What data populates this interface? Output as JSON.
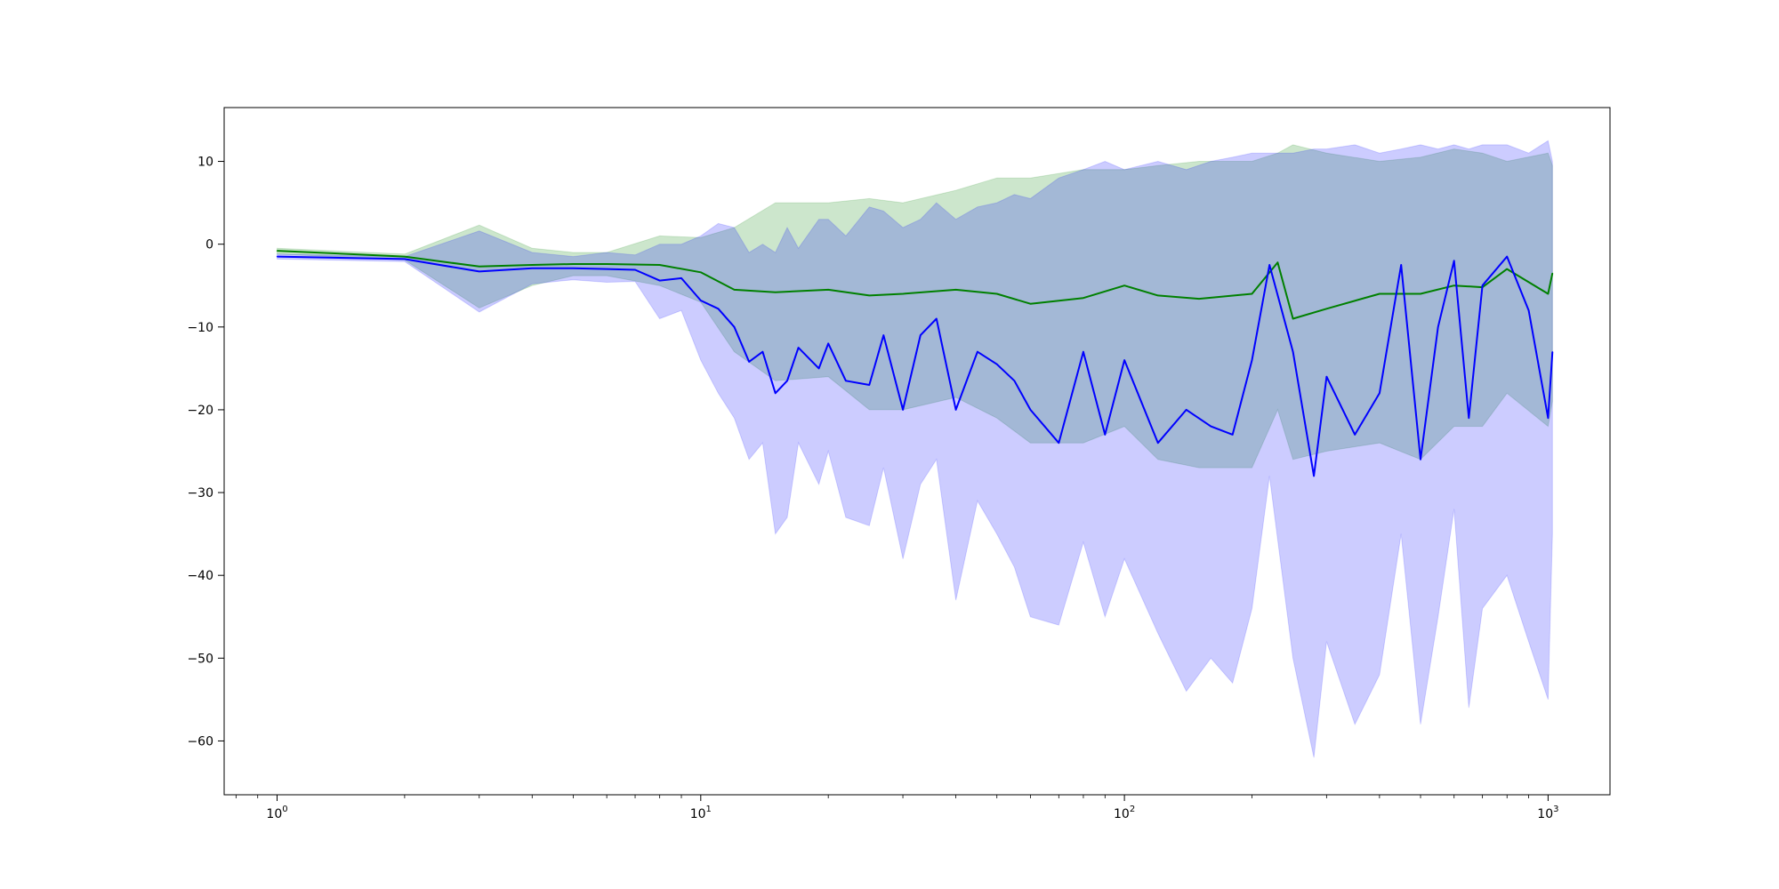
{
  "chart_data": {
    "type": "line",
    "title": "",
    "xlabel": "",
    "ylabel": "",
    "xscale": "log",
    "xlim": [
      0.75,
      1400
    ],
    "ylim": [
      -66.5,
      16.5
    ],
    "grid": false,
    "legend": "none",
    "x_ticks": [
      {
        "value": 1,
        "base": "10",
        "exp": "0"
      },
      {
        "value": 10,
        "base": "10",
        "exp": "1"
      },
      {
        "value": 100,
        "base": "10",
        "exp": "2"
      },
      {
        "value": 1000,
        "base": "10",
        "exp": "3"
      }
    ],
    "y_ticks": [
      {
        "value": 10,
        "label": "10"
      },
      {
        "value": 0,
        "label": "0"
      },
      {
        "value": -10,
        "label": "−10"
      },
      {
        "value": -20,
        "label": "−20"
      },
      {
        "value": -30,
        "label": "−30"
      },
      {
        "value": -40,
        "label": "−40"
      },
      {
        "value": -50,
        "label": "−50"
      },
      {
        "value": -60,
        "label": "−60"
      }
    ],
    "series": [
      {
        "color": "#008000",
        "band_color": "#008000",
        "band_opacity": 0.2,
        "x": [
          1,
          2,
          3,
          4,
          5,
          6,
          8,
          10,
          12,
          15,
          20,
          25,
          30,
          40,
          50,
          60,
          80,
          100,
          120,
          150,
          200,
          230,
          250,
          300,
          400,
          500,
          600,
          700,
          800,
          1000,
          1024
        ],
        "y": [
          -0.8,
          -1.5,
          -2.7,
          -2.5,
          -2.4,
          -2.4,
          -2.5,
          -3.4,
          -5.5,
          -5.8,
          -5.5,
          -6.2,
          -6.0,
          -5.5,
          -6.0,
          -7.2,
          -6.5,
          -5.0,
          -6.2,
          -6.6,
          -6.0,
          -2.2,
          -9.0,
          -7.8,
          -6.0,
          -6.0,
          -5.0,
          -5.2,
          -3.0,
          -6.0,
          -3.5
        ],
        "upper": [
          -0.5,
          -1.2,
          2.3,
          -0.5,
          -1.0,
          -1.0,
          1.0,
          0.8,
          2.0,
          5.0,
          5.0,
          5.5,
          5.0,
          6.5,
          8.0,
          8.0,
          9.0,
          9.0,
          9.5,
          10.0,
          10.0,
          11.0,
          12.0,
          11.0,
          10.0,
          10.5,
          11.5,
          11.0,
          10.0,
          11.0,
          9.5
        ],
        "lower": [
          -1.2,
          -1.9,
          -7.7,
          -5.0,
          -3.8,
          -3.8,
          -5.0,
          -7.0,
          -13.0,
          -16.5,
          -16.0,
          -20.0,
          -20.0,
          -18.5,
          -21.0,
          -24.0,
          -24.0,
          -22.0,
          -26.0,
          -27.0,
          -27.0,
          -20.0,
          -26.0,
          -25.0,
          -24.0,
          -26.0,
          -22.0,
          -22.0,
          -18.0,
          -22.0,
          -19.0
        ]
      },
      {
        "color": "#0000ff",
        "band_color": "#0000ff",
        "band_opacity": 0.2,
        "x": [
          1,
          2,
          3,
          4,
          5,
          6,
          7,
          8,
          9,
          10,
          11,
          12,
          13,
          14,
          15,
          16,
          17,
          19,
          20,
          22,
          25,
          27,
          30,
          33,
          36,
          40,
          45,
          50,
          55,
          60,
          70,
          80,
          90,
          100,
          120,
          140,
          160,
          180,
          200,
          220,
          250,
          280,
          300,
          350,
          400,
          450,
          500,
          550,
          600,
          650,
          700,
          800,
          900,
          1000,
          1024
        ],
        "y": [
          -1.5,
          -1.8,
          -3.3,
          -2.9,
          -2.9,
          -3.0,
          -3.1,
          -4.4,
          -4.1,
          -6.8,
          -7.8,
          -10.0,
          -14.2,
          -13.0,
          -18.0,
          -16.5,
          -12.5,
          -15.0,
          -12.0,
          -16.5,
          -17.0,
          -11.0,
          -20.0,
          -11.0,
          -9.0,
          -20.0,
          -13.0,
          -14.5,
          -16.5,
          -20.0,
          -24.0,
          -13.0,
          -23.0,
          -14.0,
          -24.0,
          -20.0,
          -22.0,
          -23.0,
          -14.0,
          -2.5,
          -13.0,
          -28.0,
          -16.0,
          -23.0,
          -18.0,
          -2.5,
          -26.0,
          -10.0,
          -2.0,
          -21.0,
          -5.0,
          -1.5,
          -8.0,
          -21.0,
          -13.0
        ],
        "upper": [
          -1.2,
          -1.5,
          1.6,
          -1.0,
          -1.5,
          -1.0,
          -1.3,
          0.0,
          0.0,
          1.0,
          2.5,
          2.0,
          -1.0,
          0.0,
          -1.0,
          2.0,
          -0.5,
          3.0,
          3.0,
          1.0,
          4.5,
          4.0,
          2.0,
          3.0,
          5.0,
          3.0,
          4.5,
          5.0,
          6.0,
          5.5,
          8.0,
          9.0,
          10.0,
          9.0,
          10.0,
          9.0,
          10.0,
          10.5,
          11.0,
          11.0,
          11.0,
          11.5,
          11.5,
          12.0,
          11.0,
          11.5,
          12.0,
          11.5,
          12.0,
          11.5,
          12.0,
          12.0,
          11.0,
          12.5,
          10.0
        ],
        "lower": [
          -1.8,
          -2.1,
          -8.2,
          -4.8,
          -4.3,
          -4.6,
          -4.5,
          -9.0,
          -8.0,
          -14.0,
          -18.0,
          -21.0,
          -26.0,
          -24.0,
          -35.0,
          -33.0,
          -24.0,
          -29.0,
          -25.0,
          -33.0,
          -34.0,
          -27.0,
          -38.0,
          -29.0,
          -26.0,
          -43.0,
          -31.0,
          -35.0,
          -39.0,
          -45.0,
          -46.0,
          -36.0,
          -45.0,
          -38.0,
          -47.0,
          -54.0,
          -50.0,
          -53.0,
          -44.0,
          -28.0,
          -50.0,
          -62.0,
          -48.0,
          -58.0,
          -52.0,
          -35.0,
          -58.0,
          -45.0,
          -32.0,
          -56.0,
          -44.0,
          -40.0,
          -48.0,
          -55.0,
          -35.0
        ]
      }
    ]
  }
}
